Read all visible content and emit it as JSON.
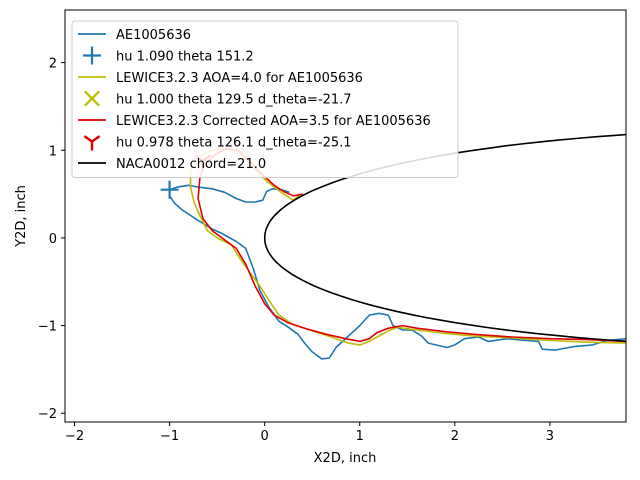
{
  "chart_data": {
    "type": "line",
    "title": "",
    "xlabel": "X2D, inch",
    "ylabel": "Y2D, inch",
    "xlim": [
      -2.1,
      3.8
    ],
    "ylim": [
      -2.1,
      2.6
    ],
    "xticks": [
      -2,
      -1,
      0,
      1,
      2,
      3
    ],
    "yticks": [
      -2,
      -1,
      0,
      1,
      2
    ],
    "xtick_labels": [
      "−2",
      "−1",
      "0",
      "1",
      "2",
      "3"
    ],
    "ytick_labels": [
      "−2",
      "−1",
      "0",
      "1",
      "2"
    ],
    "grid": false,
    "legend_position": "top-left",
    "series": [
      {
        "name": "AE1005636",
        "kind": "line",
        "color": "#1f77b4",
        "points": [
          [
            3.8,
            -1.15
          ],
          [
            3.6,
            -1.17
          ],
          [
            3.45,
            -1.22
          ],
          [
            3.25,
            -1.24
          ],
          [
            3.05,
            -1.28
          ],
          [
            2.92,
            -1.27
          ],
          [
            2.88,
            -1.18
          ],
          [
            2.75,
            -1.17
          ],
          [
            2.55,
            -1.15
          ],
          [
            2.35,
            -1.18
          ],
          [
            2.25,
            -1.13
          ],
          [
            2.1,
            -1.15
          ],
          [
            2.0,
            -1.22
          ],
          [
            1.92,
            -1.25
          ],
          [
            1.8,
            -1.22
          ],
          [
            1.72,
            -1.2
          ],
          [
            1.65,
            -1.12
          ],
          [
            1.55,
            -1.05
          ],
          [
            1.45,
            -1.05
          ],
          [
            1.35,
            -1.0
          ],
          [
            1.3,
            -0.88
          ],
          [
            1.2,
            -0.86
          ],
          [
            1.1,
            -0.88
          ],
          [
            1.0,
            -1.0
          ],
          [
            0.9,
            -1.1
          ],
          [
            0.82,
            -1.18
          ],
          [
            0.75,
            -1.25
          ],
          [
            0.68,
            -1.37
          ],
          [
            0.6,
            -1.38
          ],
          [
            0.5,
            -1.3
          ],
          [
            0.42,
            -1.2
          ],
          [
            0.35,
            -1.1
          ],
          [
            0.25,
            -1.02
          ],
          [
            0.15,
            -0.95
          ],
          [
            0.05,
            -0.8
          ],
          [
            -0.05,
            -0.6
          ],
          [
            -0.12,
            -0.35
          ],
          [
            -0.2,
            -0.12
          ],
          [
            -0.3,
            -0.04
          ],
          [
            -0.45,
            0.05
          ],
          [
            -0.55,
            0.1
          ],
          [
            -0.7,
            0.2
          ],
          [
            -0.8,
            0.27
          ],
          [
            -0.88,
            0.33
          ],
          [
            -0.95,
            0.4
          ],
          [
            -1.0,
            0.48
          ],
          [
            -1.0,
            0.55
          ],
          [
            -0.92,
            0.58
          ],
          [
            -0.8,
            0.6
          ],
          [
            -0.7,
            0.58
          ],
          [
            -0.55,
            0.56
          ],
          [
            -0.42,
            0.52
          ],
          [
            -0.3,
            0.45
          ],
          [
            -0.2,
            0.41
          ],
          [
            -0.1,
            0.41
          ],
          [
            -0.02,
            0.43
          ],
          [
            0.02,
            0.53
          ],
          [
            0.08,
            0.56
          ],
          [
            0.18,
            0.55
          ],
          [
            0.26,
            0.52
          ]
        ]
      },
      {
        "name": "hu 1.090 theta 151.2",
        "kind": "marker",
        "marker": "plus",
        "color": "#1f77b4",
        "points": [
          [
            -1.0,
            0.55
          ]
        ]
      },
      {
        "name": "LEWICE3.2.3 AOA=4.0 for AE1005636",
        "kind": "line",
        "color": "#bcbd00",
        "points": [
          [
            3.8,
            -1.2
          ],
          [
            3.4,
            -1.19
          ],
          [
            3.0,
            -1.17
          ],
          [
            2.6,
            -1.14
          ],
          [
            2.2,
            -1.12
          ],
          [
            1.9,
            -1.09
          ],
          [
            1.6,
            -1.05
          ],
          [
            1.4,
            -1.02
          ],
          [
            1.3,
            -1.06
          ],
          [
            1.2,
            -1.12
          ],
          [
            1.1,
            -1.18
          ],
          [
            1.0,
            -1.22
          ],
          [
            0.88,
            -1.2
          ],
          [
            0.7,
            -1.13
          ],
          [
            0.5,
            -1.06
          ],
          [
            0.3,
            -0.99
          ],
          [
            0.15,
            -0.88
          ],
          [
            0.05,
            -0.72
          ],
          [
            -0.05,
            -0.55
          ],
          [
            -0.15,
            -0.4
          ],
          [
            -0.25,
            -0.25
          ],
          [
            -0.35,
            -0.08
          ],
          [
            -0.5,
            0.0
          ],
          [
            -0.6,
            0.08
          ],
          [
            -0.68,
            0.25
          ],
          [
            -0.74,
            0.4
          ],
          [
            -0.78,
            0.58
          ],
          [
            -0.78,
            0.75
          ],
          [
            -0.72,
            0.9
          ],
          [
            -0.6,
            0.98
          ],
          [
            -0.45,
            1.02
          ],
          [
            -0.3,
            1.0
          ],
          [
            -0.2,
            0.9
          ],
          [
            -0.1,
            0.78
          ],
          [
            0.0,
            0.67
          ],
          [
            0.1,
            0.58
          ],
          [
            0.2,
            0.5
          ],
          [
            0.3,
            0.43
          ],
          [
            0.38,
            0.5
          ]
        ]
      },
      {
        "name": "hu 1.000 theta 129.5 d_theta=-21.7",
        "kind": "marker",
        "marker": "x",
        "color": "#bcbd00",
        "points": []
      },
      {
        "name": "LEWICE3.2.3 Corrected AOA=3.5 for AE1005636",
        "kind": "line",
        "color": "#e00000",
        "points": [
          [
            3.8,
            -1.18
          ],
          [
            3.4,
            -1.16
          ],
          [
            3.0,
            -1.15
          ],
          [
            2.6,
            -1.13
          ],
          [
            2.2,
            -1.1
          ],
          [
            1.9,
            -1.07
          ],
          [
            1.6,
            -1.03
          ],
          [
            1.45,
            -1.0
          ],
          [
            1.3,
            -1.03
          ],
          [
            1.18,
            -1.08
          ],
          [
            1.1,
            -1.15
          ],
          [
            1.0,
            -1.18
          ],
          [
            0.85,
            -1.15
          ],
          [
            0.65,
            -1.1
          ],
          [
            0.45,
            -1.04
          ],
          [
            0.25,
            -0.97
          ],
          [
            0.1,
            -0.88
          ],
          [
            0.0,
            -0.75
          ],
          [
            -0.1,
            -0.55
          ],
          [
            -0.2,
            -0.3
          ],
          [
            -0.3,
            -0.12
          ],
          [
            -0.45,
            0.0
          ],
          [
            -0.55,
            0.08
          ],
          [
            -0.65,
            0.22
          ],
          [
            -0.7,
            0.45
          ],
          [
            -0.68,
            0.7
          ],
          [
            -0.62,
            0.85
          ],
          [
            -0.52,
            0.95
          ],
          [
            -0.4,
            1.02
          ],
          [
            -0.28,
            1.0
          ],
          [
            -0.18,
            0.9
          ],
          [
            -0.08,
            0.78
          ],
          [
            0.02,
            0.68
          ],
          [
            0.1,
            0.6
          ],
          [
            0.2,
            0.53
          ],
          [
            0.3,
            0.48
          ],
          [
            0.4,
            0.5
          ]
        ]
      },
      {
        "name": "hu 0.978 theta 126.1 d_theta=-25.1",
        "kind": "marker",
        "marker": "tri_down",
        "color": "#e00000",
        "points": [
          [
            -0.65,
            0.88
          ]
        ]
      },
      {
        "name": "NACA0012 chord=21.0",
        "kind": "airfoil",
        "color": "#000000",
        "chord": 21.0,
        "points": []
      }
    ]
  }
}
